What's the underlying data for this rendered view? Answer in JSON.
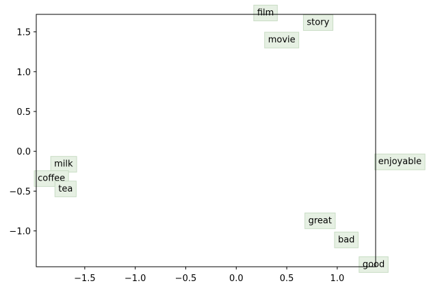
{
  "chart_data": {
    "type": "scatter",
    "title": "",
    "xlabel": "",
    "ylabel": "",
    "xlim": [
      -1.98,
      1.38
    ],
    "ylim": [
      -1.45,
      1.72
    ],
    "grid": false,
    "xticks": [
      -1.5,
      -1.0,
      -0.5,
      0.0,
      0.5,
      1.0
    ],
    "xtick_labels": [
      "−1.5",
      "−1.0",
      "−0.5",
      "0.0",
      "0.5",
      "1.0"
    ],
    "yticks": [
      1.5,
      1.0,
      0.5,
      0.0,
      -0.5,
      -1.0
    ],
    "ytick_labels": [
      "1.5",
      "1.0",
      "0.5",
      "0.0",
      "−0.5",
      "−1.0"
    ],
    "label_box_color": "#e6f0e3",
    "label_box_border": "#c8dcc4",
    "points": [
      {
        "label": "film",
        "x": 0.29,
        "y": 1.75
      },
      {
        "label": "story",
        "x": 0.81,
        "y": 1.63
      },
      {
        "label": "movie",
        "x": 0.45,
        "y": 1.41
      },
      {
        "label": "milk",
        "x": -1.71,
        "y": -0.15
      },
      {
        "label": "coffee",
        "x": -1.83,
        "y": -0.33
      },
      {
        "label": "tea",
        "x": -1.69,
        "y": -0.46
      },
      {
        "label": "enjoyable",
        "x": 1.62,
        "y": -0.12
      },
      {
        "label": "great",
        "x": 0.83,
        "y": -0.86
      },
      {
        "label": "bad",
        "x": 1.09,
        "y": -1.1
      },
      {
        "label": "good",
        "x": 1.36,
        "y": -1.41
      }
    ]
  }
}
